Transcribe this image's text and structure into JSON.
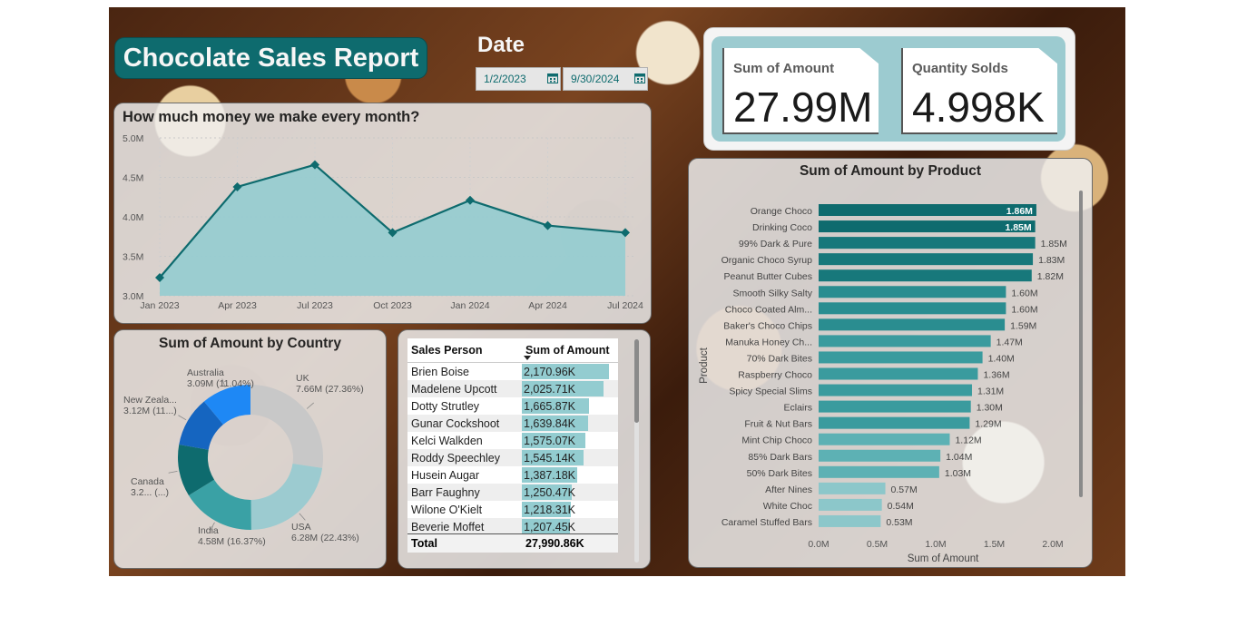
{
  "header": {
    "title": "Chocolate Sales Report"
  },
  "date_filter": {
    "label": "Date",
    "start": "1/2/2023",
    "end": "9/30/2024"
  },
  "kpis": [
    {
      "label": "Sum of Amount",
      "value": "27.99M"
    },
    {
      "label": "Quantity Solds",
      "value": "4.998K"
    }
  ],
  "colors": {
    "teal_dark": "#0e6b6e",
    "teal_mid": "#3aa1a5",
    "teal_light": "#93ccd0",
    "panel_bg": "#f0f0f0"
  },
  "chart_data": [
    {
      "type": "area",
      "title": "How much money we make every month?",
      "x": [
        "Jan 2023",
        "Apr 2023",
        "Jul 2023",
        "Oct 2023",
        "Jan 2024",
        "Apr 2024",
        "Jul 2024"
      ],
      "values": [
        3.23,
        4.38,
        4.66,
        3.8,
        4.21,
        3.89,
        3.8
      ],
      "y_ticks": [
        "3.0M",
        "3.5M",
        "4.0M",
        "4.5M",
        "5.0M"
      ],
      "ylim": [
        3.0,
        5.0
      ],
      "unit": "M",
      "grid": true
    },
    {
      "type": "pie",
      "title": "Sum of Amount by Country",
      "slices": [
        {
          "name": "UK",
          "value": 7.66,
          "label": "7.66M (27.36%)",
          "color": "#c8c8c8"
        },
        {
          "name": "USA",
          "value": 6.28,
          "label": "6.28M (22.43%)",
          "color": "#9ccbd0"
        },
        {
          "name": "India",
          "value": 4.58,
          "label": "4.58M (16.37%)",
          "color": "#3aa1a5"
        },
        {
          "name": "Canada",
          "value": 3.25,
          "label": "3.2... (...)",
          "color": "#0e6b6e"
        },
        {
          "name": "New Zeala...",
          "value": 3.12,
          "label": "3.12M (11...)",
          "color": "#1565c0"
        },
        {
          "name": "Australia",
          "value": 3.09,
          "label": "3.09M (11.04%)",
          "color": "#1e88f5"
        }
      ]
    },
    {
      "type": "table",
      "columns": [
        "Sales Person",
        "Sum of Amount"
      ],
      "rows": [
        {
          "name": "Brien Boise",
          "amount": "2,170.96K",
          "value": 2170.96
        },
        {
          "name": "Madelene Upcott",
          "amount": "2,025.71K",
          "value": 2025.71
        },
        {
          "name": "Dotty Strutley",
          "amount": "1,665.87K",
          "value": 1665.87
        },
        {
          "name": "Gunar Cockshoot",
          "amount": "1,639.84K",
          "value": 1639.84
        },
        {
          "name": "Kelci Walkden",
          "amount": "1,575.07K",
          "value": 1575.07
        },
        {
          "name": "Roddy Speechley",
          "amount": "1,545.14K",
          "value": 1545.14
        },
        {
          "name": "Husein Augar",
          "amount": "1,387.18K",
          "value": 1387.18
        },
        {
          "name": "Barr Faughny",
          "amount": "1,250.47K",
          "value": 1250.47
        },
        {
          "name": "Wilone O'Kielt",
          "amount": "1,218.31K",
          "value": 1218.31
        },
        {
          "name": "Beverie Moffet",
          "amount": "1,207.45K",
          "value": 1207.45
        }
      ],
      "total_label": "Total",
      "total": "27,990.86K"
    },
    {
      "type": "bar",
      "orientation": "horizontal",
      "title": "Sum of Amount by Product",
      "ylabel": "Product",
      "xlabel": "Sum of Amount",
      "x_ticks": [
        "0.0M",
        "0.5M",
        "1.0M",
        "1.5M",
        "2.0M"
      ],
      "xlim": [
        0,
        2.0
      ],
      "categories": [
        "Orange Choco",
        "Drinking Coco",
        "99% Dark & Pure",
        "Organic Choco Syrup",
        "Peanut Butter Cubes",
        "Smooth Silky Salty",
        "Choco Coated Alm...",
        "Baker's Choco Chips",
        "Manuka Honey Ch...",
        "70% Dark Bites",
        "Raspberry Choco",
        "Spicy Special Slims",
        "Eclairs",
        "Fruit & Nut Bars",
        "Mint Chip Choco",
        "85% Dark Bars",
        "50% Dark Bites",
        "After Nines",
        "White Choc",
        "Caramel Stuffed Bars"
      ],
      "values": [
        1.86,
        1.85,
        1.85,
        1.83,
        1.82,
        1.6,
        1.6,
        1.59,
        1.47,
        1.4,
        1.36,
        1.31,
        1.3,
        1.29,
        1.12,
        1.04,
        1.03,
        0.57,
        0.54,
        0.53
      ],
      "labels": [
        "1.86M",
        "1.85M",
        "1.85M",
        "1.83M",
        "1.82M",
        "1.60M",
        "1.60M",
        "1.59M",
        "1.47M",
        "1.40M",
        "1.36M",
        "1.31M",
        "1.30M",
        "1.29M",
        "1.12M",
        "1.04M",
        "1.03M",
        "0.57M",
        "0.54M",
        "0.53M"
      ]
    }
  ]
}
